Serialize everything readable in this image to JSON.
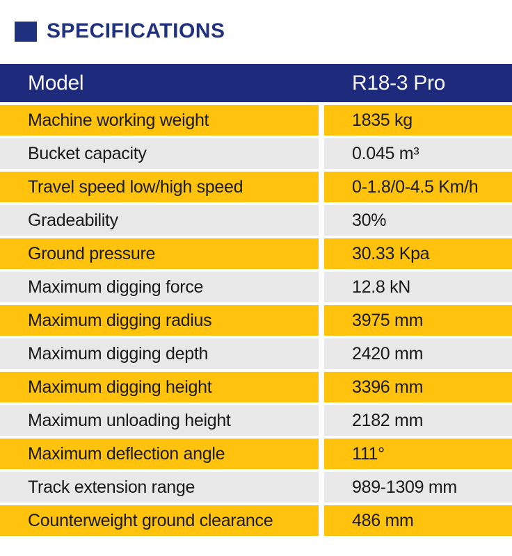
{
  "section_header": {
    "title": "SPECIFICATIONS",
    "accent_color": "#20317f"
  },
  "table": {
    "header": {
      "model_label": "Model",
      "model_value": "R18-3 Pro"
    },
    "colors": {
      "header_bg": "#1e2b7c",
      "odd_row_bg": "#ffc30d",
      "even_row_bg": "#e8e8e8",
      "row_text": "#1a1a1a",
      "gap": "#ffffff"
    },
    "rows": [
      {
        "label": "Machine working weight",
        "value": "1835 kg"
      },
      {
        "label": "Bucket capacity",
        "value": "0.045 m³"
      },
      {
        "label": "Travel speed low/high speed",
        "value": "0-1.8/0-4.5 Km/h"
      },
      {
        "label": "Gradeability",
        "value": "30%"
      },
      {
        "label": "Ground pressure",
        "value": "30.33 Kpa"
      },
      {
        "label": "Maximum digging force",
        "value": "12.8 kN"
      },
      {
        "label": "Maximum digging radius",
        "value": "3975 mm"
      },
      {
        "label": "Maximum digging depth",
        "value": "2420 mm"
      },
      {
        "label": "Maximum digging height",
        "value": "3396 mm"
      },
      {
        "label": "Maximum unloading height",
        "value": "2182 mm"
      },
      {
        "label": "Maximum deflection angle",
        "value": "111°"
      },
      {
        "label": "Track extension range",
        "value": "989-1309 mm"
      },
      {
        "label": "Counterweight ground clearance",
        "value": "486 mm"
      }
    ]
  }
}
